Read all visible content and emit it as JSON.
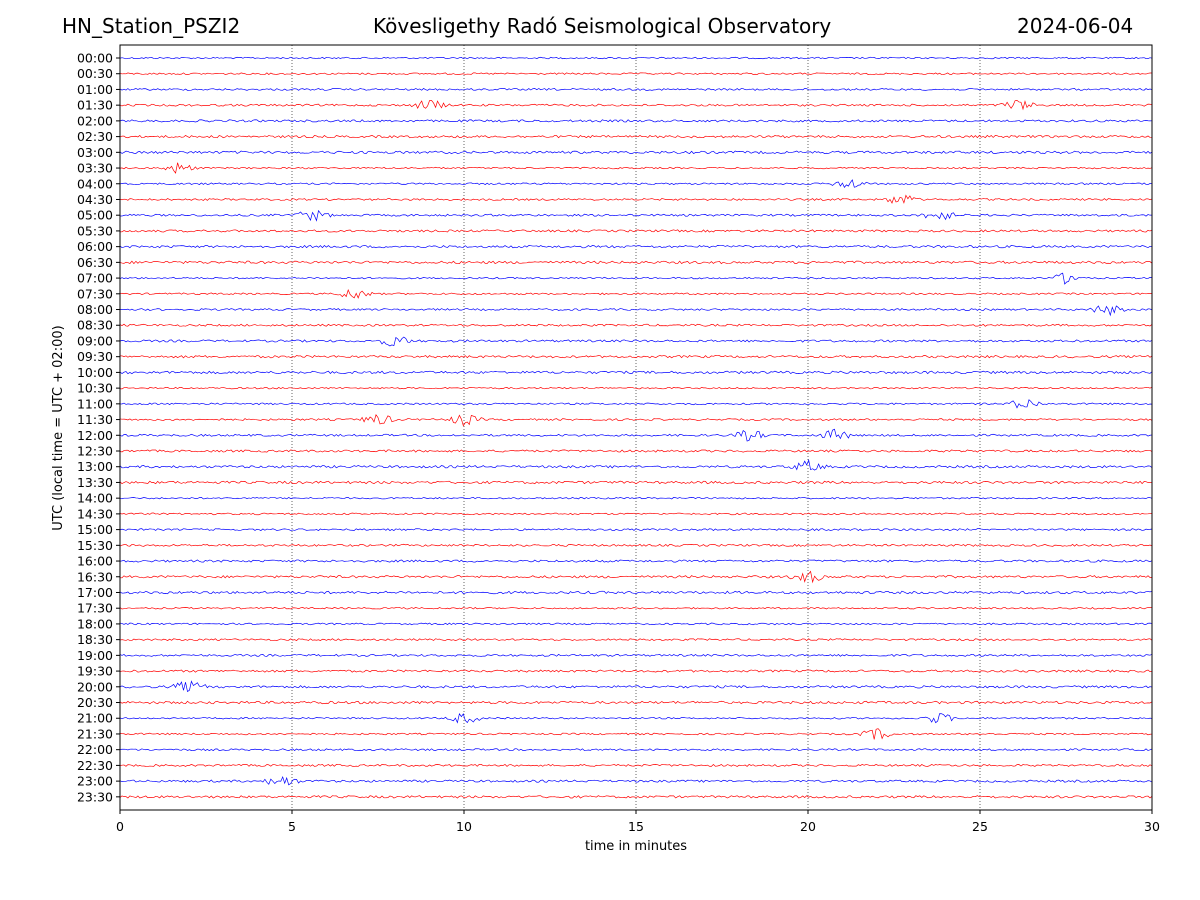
{
  "header": {
    "station": "HN_Station_PSZI2",
    "observatory": "Kövesligethy Radó Seismological Observatory",
    "date": "2024-06-04"
  },
  "chart_data": {
    "type": "line",
    "subtype": "helicorder",
    "xlabel": "time in minutes",
    "ylabel": "UTC (local time = UTC + 02:00)",
    "xlim": [
      0,
      30
    ],
    "xticks": [
      0,
      5,
      10,
      15,
      20,
      25,
      30
    ],
    "grid": "vertical dotted at 5, 10, 15, 20, 25",
    "rows": [
      "00:00",
      "00:30",
      "01:00",
      "01:30",
      "02:00",
      "02:30",
      "03:00",
      "03:30",
      "04:00",
      "04:30",
      "05:00",
      "05:30",
      "06:00",
      "06:30",
      "07:00",
      "07:30",
      "08:00",
      "08:30",
      "09:00",
      "09:30",
      "10:00",
      "10:30",
      "11:00",
      "11:30",
      "12:00",
      "12:30",
      "13:00",
      "13:30",
      "14:00",
      "14:30",
      "15:00",
      "15:30",
      "16:00",
      "16:30",
      "17:00",
      "17:30",
      "18:00",
      "18:30",
      "19:00",
      "19:30",
      "20:00",
      "20:30",
      "21:00",
      "21:30",
      "22:00",
      "22:30",
      "23:00",
      "23:30"
    ],
    "colors": [
      "#0000ff",
      "#ff0000"
    ],
    "events": [
      {
        "row": "01:30",
        "minute": 9.0
      },
      {
        "row": "01:30",
        "minute": 26.1
      },
      {
        "row": "03:30",
        "minute": 1.7
      },
      {
        "row": "04:00",
        "minute": 21.2
      },
      {
        "row": "04:30",
        "minute": 22.7
      },
      {
        "row": "05:00",
        "minute": 5.6
      },
      {
        "row": "05:00",
        "minute": 23.8
      },
      {
        "row": "07:00",
        "minute": 27.5
      },
      {
        "row": "07:30",
        "minute": 6.8
      },
      {
        "row": "08:00",
        "minute": 28.7
      },
      {
        "row": "09:00",
        "minute": 8.0
      },
      {
        "row": "11:00",
        "minute": 26.3
      },
      {
        "row": "11:30",
        "minute": 7.5
      },
      {
        "row": "11:30",
        "minute": 10.0
      },
      {
        "row": "12:00",
        "minute": 18.3
      },
      {
        "row": "12:00",
        "minute": 20.8
      },
      {
        "row": "13:00",
        "minute": 20.0
      },
      {
        "row": "16:30",
        "minute": 20.0
      },
      {
        "row": "20:00",
        "minute": 2.0
      },
      {
        "row": "21:00",
        "minute": 10.0
      },
      {
        "row": "21:00",
        "minute": 23.8
      },
      {
        "row": "21:30",
        "minute": 22.0
      },
      {
        "row": "23:00",
        "minute": 4.7
      }
    ]
  }
}
